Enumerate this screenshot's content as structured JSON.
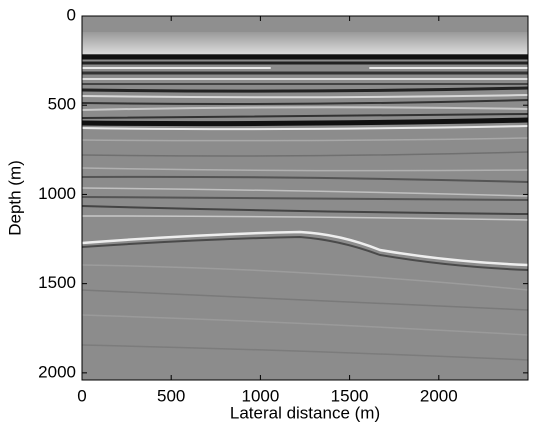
{
  "chart_data": {
    "type": "image",
    "xlabel": "Lateral distance (m)",
    "ylabel": "Depth (m)",
    "xlim": [
      0,
      2500
    ],
    "xticks": [
      0,
      500,
      1000,
      1500,
      2000
    ],
    "ylim": [
      2040,
      0
    ],
    "yticks": [
      0,
      500,
      1000,
      1500,
      2000
    ]
  }
}
